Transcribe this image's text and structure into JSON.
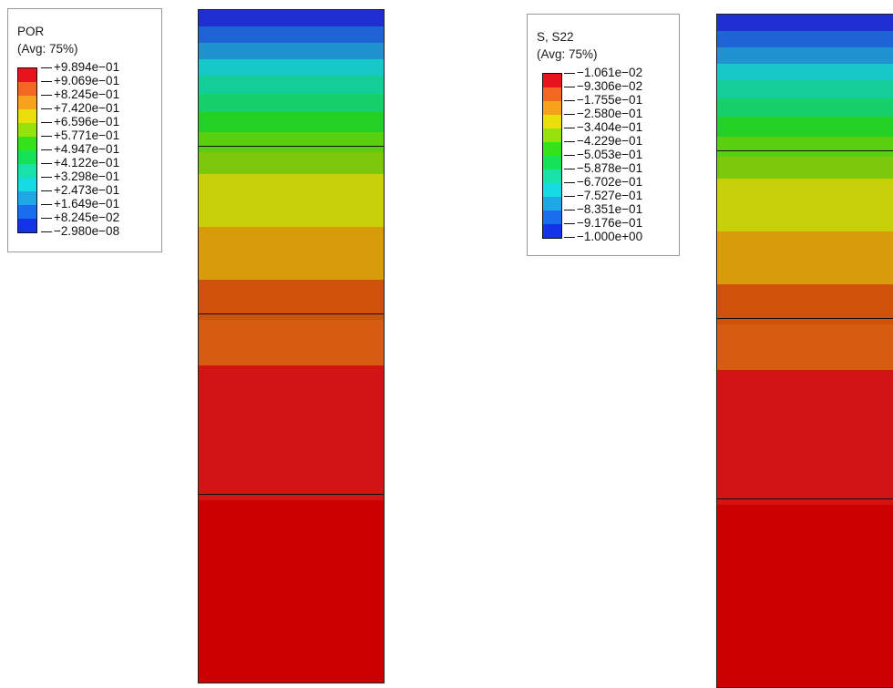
{
  "legends": {
    "por": {
      "variable": "POR",
      "avg": "(Avg: 75%)",
      "labels": [
        "+9.894e−01",
        "+9.069e−01",
        "+8.245e−01",
        "+7.420e−01",
        "+6.596e−01",
        "+5.771e−01",
        "+4.947e−01",
        "+4.122e−01",
        "+3.298e−01",
        "+2.473e−01",
        "+1.649e−01",
        "+8.245e−02",
        "−2.980e−08"
      ]
    },
    "s22": {
      "variable": "S, S22",
      "avg": "(Avg: 75%)",
      "labels": [
        "−1.061e−02",
        "−9.306e−02",
        "−1.755e−01",
        "−2.580e−01",
        "−3.404e−01",
        "−4.229e−01",
        "−5.053e−01",
        "−5.878e−01",
        "−6.702e−01",
        "−7.527e−01",
        "−8.351e−01",
        "−9.176e−01",
        "−1.000e+00"
      ]
    }
  },
  "colors": {
    "spectrum_top_to_bottom": [
      "#e8141b",
      "#f26722",
      "#f7a21c",
      "#e9df0a",
      "#98e10c",
      "#36e21a",
      "#15e256",
      "#18e2a8",
      "#17dbe2",
      "#1ea9e6",
      "#1a6ded",
      "#1433e8"
    ],
    "column_bands_top_to_bottom": [
      "#1e2ed0",
      "#1f64d6",
      "#1f92d0",
      "#17c8c8",
      "#14ce98",
      "#18d06a",
      "#24d024",
      "#58d010",
      "#7cc80c",
      "#c8d00a",
      "#d89c0a",
      "#d0520a",
      "#d65c10",
      "#d21414",
      "#cc0000"
    ]
  }
}
